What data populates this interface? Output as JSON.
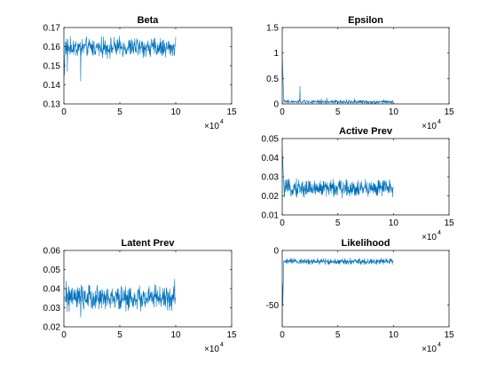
{
  "figure": {
    "background": "#ffffff",
    "trace_color": "#0072bd"
  },
  "chart_data": [
    {
      "type": "line",
      "title": "Beta",
      "xlim": [
        0,
        150000
      ],
      "ylim": [
        0.13,
        0.17
      ],
      "xticks": [
        0,
        5,
        10,
        15
      ],
      "yticks": [
        "0.13",
        "0.14",
        "0.15",
        "0.16",
        "0.17"
      ],
      "x_multiplier": "×10",
      "x_multiplier_exp": "4",
      "series": [
        {
          "x_range": [
            0,
            100000
          ],
          "start": 0.15,
          "typical": 0.16,
          "band_low": 0.154,
          "band_high": 0.165,
          "spikes": [
            [
              0.3,
              0.147
            ],
            [
              1.5,
              0.142
            ],
            [
              0.05,
              0.145
            ]
          ]
        }
      ]
    },
    {
      "type": "line",
      "title": "Epsilon",
      "xlim": [
        0,
        150000
      ],
      "ylim": [
        0,
        1.5
      ],
      "xticks": [
        0,
        5,
        10,
        15
      ],
      "yticks": [
        "0",
        "0.5",
        "1",
        "1.5"
      ],
      "x_multiplier": "×10",
      "x_multiplier_exp": "4",
      "series": [
        {
          "x_range": [
            0,
            100000
          ],
          "start": 1.0,
          "typical": 0.03,
          "band_low": 0.0,
          "band_high": 0.08,
          "spikes": [
            [
              1.6,
              0.35
            ],
            [
              4.0,
              0.12
            ],
            [
              6.5,
              0.1
            ],
            [
              3.5,
              0.1
            ]
          ]
        }
      ]
    },
    {
      "type": "line",
      "title": "Active Prev",
      "xlim": [
        0,
        150000
      ],
      "ylim": [
        0.01,
        0.05
      ],
      "xticks": [
        0,
        5,
        10,
        15
      ],
      "yticks": [
        "0.01",
        "0.02",
        "0.03",
        "0.04",
        "0.05"
      ],
      "x_multiplier": "×10",
      "x_multiplier_exp": "4",
      "series": [
        {
          "x_range": [
            0,
            100000
          ],
          "start": 0.045,
          "typical": 0.024,
          "band_low": 0.019,
          "band_high": 0.029,
          "spikes": [
            [
              0.05,
              0.04
            ]
          ]
        }
      ]
    },
    {
      "type": "line",
      "title": "Latent Prev",
      "xlim": [
        0,
        150000
      ],
      "ylim": [
        0.02,
        0.06
      ],
      "xticks": [
        0,
        5,
        10,
        15
      ],
      "yticks": [
        "0.02",
        "0.03",
        "0.04",
        "0.05",
        "0.06"
      ],
      "x_multiplier": "×10",
      "x_multiplier_exp": "4",
      "series": [
        {
          "x_range": [
            0,
            100000
          ],
          "start": 0.036,
          "typical": 0.035,
          "band_low": 0.028,
          "band_high": 0.042,
          "spikes": [
            [
              1.5,
              0.025
            ],
            [
              9.9,
              0.045
            ],
            [
              0.2,
              0.044
            ]
          ]
        }
      ]
    },
    {
      "type": "line",
      "title": "Likelihood",
      "xlim": [
        0,
        150000
      ],
      "ylim": [
        -70,
        0
      ],
      "xticks": [
        0,
        5,
        10,
        15
      ],
      "yticks": [
        "-50",
        "0"
      ],
      "ytick_values": [
        -50,
        0
      ],
      "x_multiplier": "×10",
      "x_multiplier_exp": "4",
      "series": [
        {
          "x_range": [
            0,
            100000
          ],
          "start": -70,
          "typical": -10,
          "band_low": -13,
          "band_high": -7,
          "spikes": [
            [
              0.02,
              -30
            ]
          ]
        }
      ]
    }
  ]
}
